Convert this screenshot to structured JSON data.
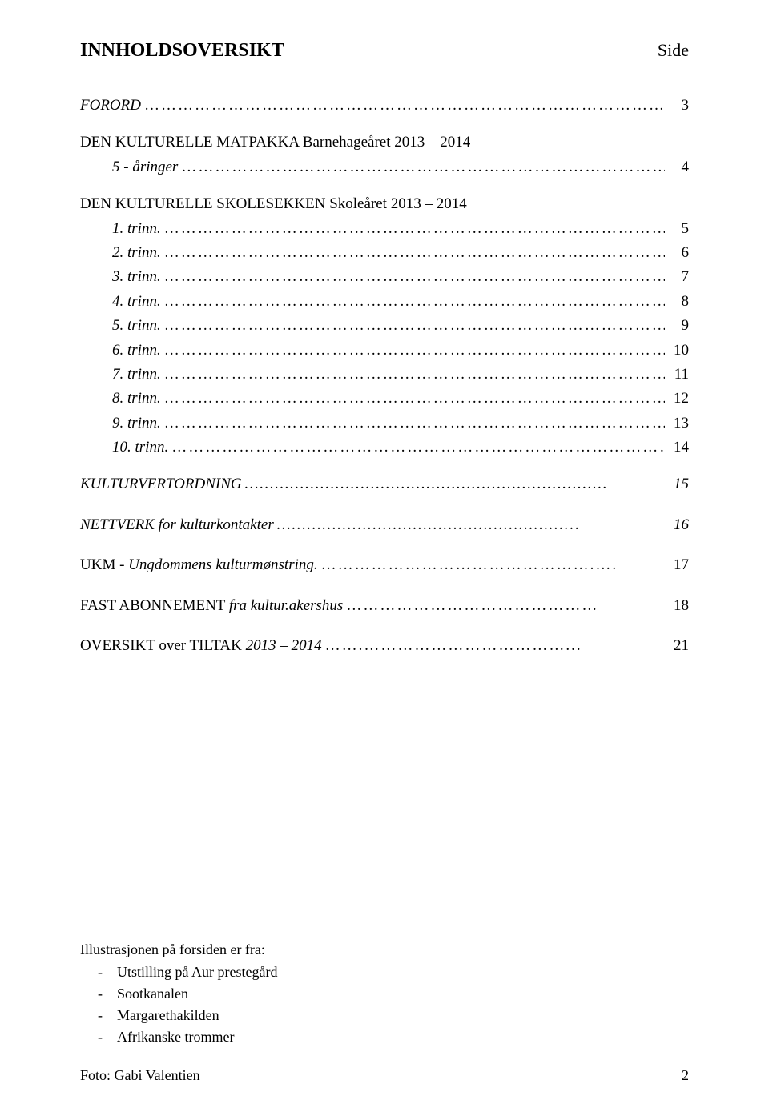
{
  "header": {
    "title": "INNHOLDSOVERSIKT",
    "side_label": "Side"
  },
  "toc": [
    {
      "text": "FORORD",
      "page": "3",
      "italic": true,
      "indent": false,
      "leader": "…………………………………………………………………………………….."
    },
    {
      "spacer": true
    },
    {
      "text": "DEN KULTURELLE MATPAKKA Barnehageåret 2013 – 2014",
      "page": "",
      "italic": false,
      "indent": false,
      "no_leader": true
    },
    {
      "text": "5 - åringer",
      "page": "4",
      "italic": true,
      "indent": true,
      "leader": "…………………………………………………………………………………….."
    },
    {
      "spacer": true
    },
    {
      "text": "DEN KULTURELLE SKOLESEKKEN Skoleåret 2013 – 2014",
      "page": "",
      "italic": false,
      "indent": false,
      "no_leader": true
    },
    {
      "text": "1. trinn.",
      "page": "5",
      "italic": true,
      "indent": true,
      "leader": "……………………………………………………………………………….."
    },
    {
      "text": "2. trinn.",
      "page": "6",
      "italic": true,
      "indent": true,
      "leader": "……………………………………………………………………………….."
    },
    {
      "text": "3. trinn.",
      "page": "7",
      "italic": true,
      "indent": true,
      "leader": "……………………………………………………………………………….."
    },
    {
      "text": "4. trinn.",
      "page": "8",
      "italic": true,
      "indent": true,
      "leader": "……………………………………………………………………………….."
    },
    {
      "text": "5. trinn.",
      "page": "9",
      "italic": true,
      "indent": true,
      "leader": "……………………………………………………………………………….."
    },
    {
      "text": "6. trinn.",
      "page": "10",
      "italic": true,
      "indent": true,
      "leader": "……………………………………………………………………………….."
    },
    {
      "text": "7. trinn.",
      "page": "11",
      "italic": true,
      "indent": true,
      "leader": "……………………………………………………………………………….."
    },
    {
      "text": "8. trinn.",
      "page": "12",
      "italic": true,
      "indent": true,
      "leader": "……………………………………………………………………………….."
    },
    {
      "text": "9. trinn.",
      "page": "13",
      "italic": true,
      "indent": true,
      "leader": "……………………………………………………………………………….."
    },
    {
      "text": "10. trinn.",
      "page": "14",
      "italic": true,
      "indent": true,
      "leader": "……………………………………………………………………………….."
    },
    {
      "spacer": true
    },
    {
      "text": "KULTURVERTORDNING",
      "page": "15",
      "italic_all": true,
      "indent": false,
      "leader": "………………………………………………………………"
    },
    {
      "spacer": true,
      "large": true
    },
    {
      "text": "NETTVERK for kulturkontakter",
      "page": "16",
      "italic_all": true,
      "indent": false,
      "leader": "…………………………………………………..."
    },
    {
      "spacer": true,
      "large": true
    },
    {
      "text_html": "UKM - <i>Ungdommens kulturmønstring.</i>",
      "page": "17",
      "italic": false,
      "indent": false,
      "leader": "………………………………………….…."
    },
    {
      "spacer": true,
      "large": true
    },
    {
      "text_html": "FAST ABONNEMENT <i>fra kultur.akershus</i>",
      "page": "18",
      "italic": false,
      "indent": false,
      "leader": "………………………………………"
    },
    {
      "spacer": true,
      "large": true
    },
    {
      "text_html": "OVERSIKT over TILTAK <i>2013 – 2014</i>",
      "page": "21",
      "italic": false,
      "indent": false,
      "leader": "…….………………………………..."
    }
  ],
  "footer": {
    "intro": "Illustrasjonen på forsiden er fra:",
    "items": [
      "Utstilling på Aur prestegård",
      "Sootkanalen",
      "Margarethakilden",
      "Afrikanske trommer"
    ],
    "photo": "Foto: Gabi Valentien"
  },
  "page_number": "2"
}
